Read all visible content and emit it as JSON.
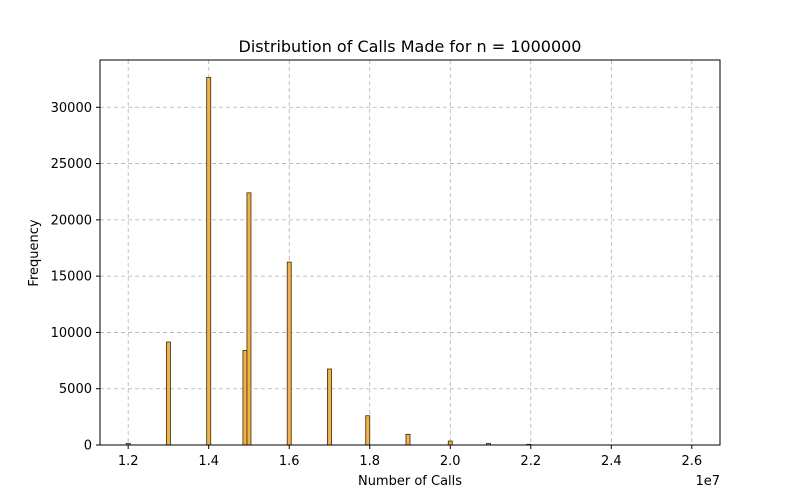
{
  "chart_data": {
    "type": "bar",
    "title": "Distribution of Calls Made for n = 1000000",
    "xlabel": "Number of Calls",
    "ylabel": "Frequency",
    "x_offset_label": "1e7",
    "xlim": [
      11300000,
      26700000
    ],
    "ylim": [
      0,
      34200
    ],
    "xticks": [
      12000000,
      14000000,
      16000000,
      18000000,
      20000000,
      22000000,
      24000000,
      26000000
    ],
    "xtick_labels": [
      "1.2",
      "1.4",
      "1.6",
      "1.8",
      "2.0",
      "2.2",
      "2.4",
      "2.6"
    ],
    "yticks": [
      0,
      5000,
      10000,
      15000,
      20000,
      25000,
      30000
    ],
    "ytick_labels": [
      "0",
      "5000",
      "10000",
      "15000",
      "20000",
      "25000",
      "30000"
    ],
    "grid": true,
    "bar_color": "#f0b24a",
    "bar_edge_color": "#3a2a10",
    "bin_width": 100000,
    "bars": [
      {
        "x": 12000000,
        "value": 150
      },
      {
        "x": 13000000,
        "value": 9150
      },
      {
        "x": 14000000,
        "value": 32650
      },
      {
        "x": 14900000,
        "value": 8400
      },
      {
        "x": 15000000,
        "value": 22400
      },
      {
        "x": 16000000,
        "value": 16250
      },
      {
        "x": 17000000,
        "value": 6750
      },
      {
        "x": 17950000,
        "value": 2600
      },
      {
        "x": 18950000,
        "value": 950
      },
      {
        "x": 20000000,
        "value": 350
      },
      {
        "x": 20950000,
        "value": 150
      },
      {
        "x": 21950000,
        "value": 60
      }
    ]
  }
}
